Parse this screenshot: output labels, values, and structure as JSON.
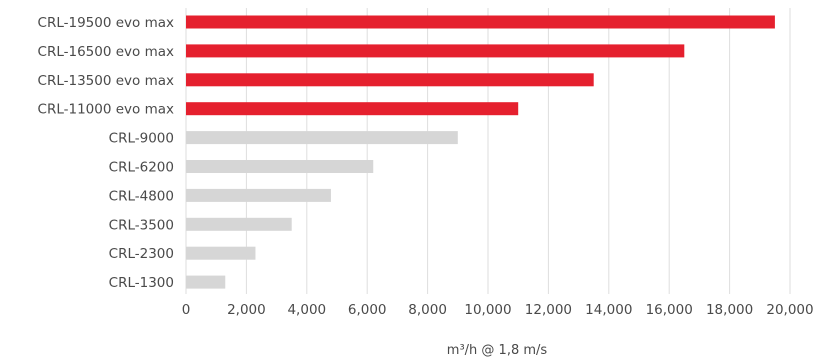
{
  "chart_data": {
    "type": "bar",
    "orientation": "horizontal",
    "categories": [
      "CRL-19500 evo max",
      "CRL-16500 evo max",
      "CRL-13500 evo max",
      "CRL-11000 evo max",
      "CRL-9000",
      "CRL-6200",
      "CRL-4800",
      "CRL-3500",
      "CRL-2300",
      "CRL-1300"
    ],
    "values": [
      19500,
      16500,
      13500,
      11000,
      9000,
      6200,
      4800,
      3500,
      2300,
      1300
    ],
    "highlight": [
      true,
      true,
      true,
      true,
      false,
      false,
      false,
      false,
      false,
      false
    ],
    "colors": {
      "highlight": "#e5202e",
      "base": "#d6d6d6",
      "grid": "#dedede"
    },
    "xlim": [
      0,
      20000
    ],
    "xticks": [
      0,
      2000,
      4000,
      6000,
      8000,
      10000,
      12000,
      14000,
      16000,
      18000,
      20000
    ],
    "xtick_labels": [
      "0",
      "2,000",
      "4,000",
      "6,000",
      "8,000",
      "10,000",
      "12,000",
      "14,000",
      "16,000",
      "18,000",
      "20,000"
    ],
    "xlabel": "m³/h @ 1,8 m/s",
    "grid": "vertical"
  }
}
